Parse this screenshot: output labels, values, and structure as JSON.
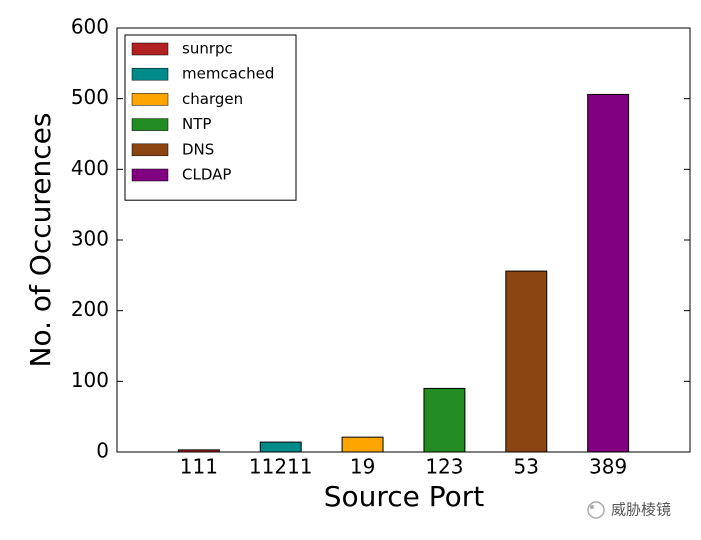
{
  "chart_data": {
    "type": "bar",
    "x_label": "Source Port",
    "y_label": "No. of Occurences",
    "categories": [
      "111",
      "11211",
      "19",
      "123",
      "53",
      "389"
    ],
    "series": [
      {
        "name": "sunrpc",
        "color": "#b22222",
        "values": [
          3,
          null,
          null,
          null,
          null,
          null
        ]
      },
      {
        "name": "memcached",
        "color": "#008b8b",
        "values": [
          null,
          14,
          null,
          null,
          null,
          null
        ]
      },
      {
        "name": "chargen",
        "color": "#ffa500",
        "values": [
          null,
          null,
          21,
          null,
          null,
          null
        ]
      },
      {
        "name": "NTP",
        "color": "#228b22",
        "values": [
          null,
          null,
          null,
          90,
          null,
          null
        ]
      },
      {
        "name": "DNS",
        "color": "#8b4513",
        "values": [
          null,
          null,
          null,
          null,
          256,
          null
        ]
      },
      {
        "name": "CLDAP",
        "color": "#800080",
        "values": [
          null,
          null,
          null,
          null,
          null,
          506
        ]
      }
    ],
    "ylim": [
      0,
      600
    ],
    "yticks": [
      0,
      100,
      200,
      300,
      400,
      500,
      600
    ],
    "legend": "upper left",
    "watermark": "威胁棱镜"
  }
}
